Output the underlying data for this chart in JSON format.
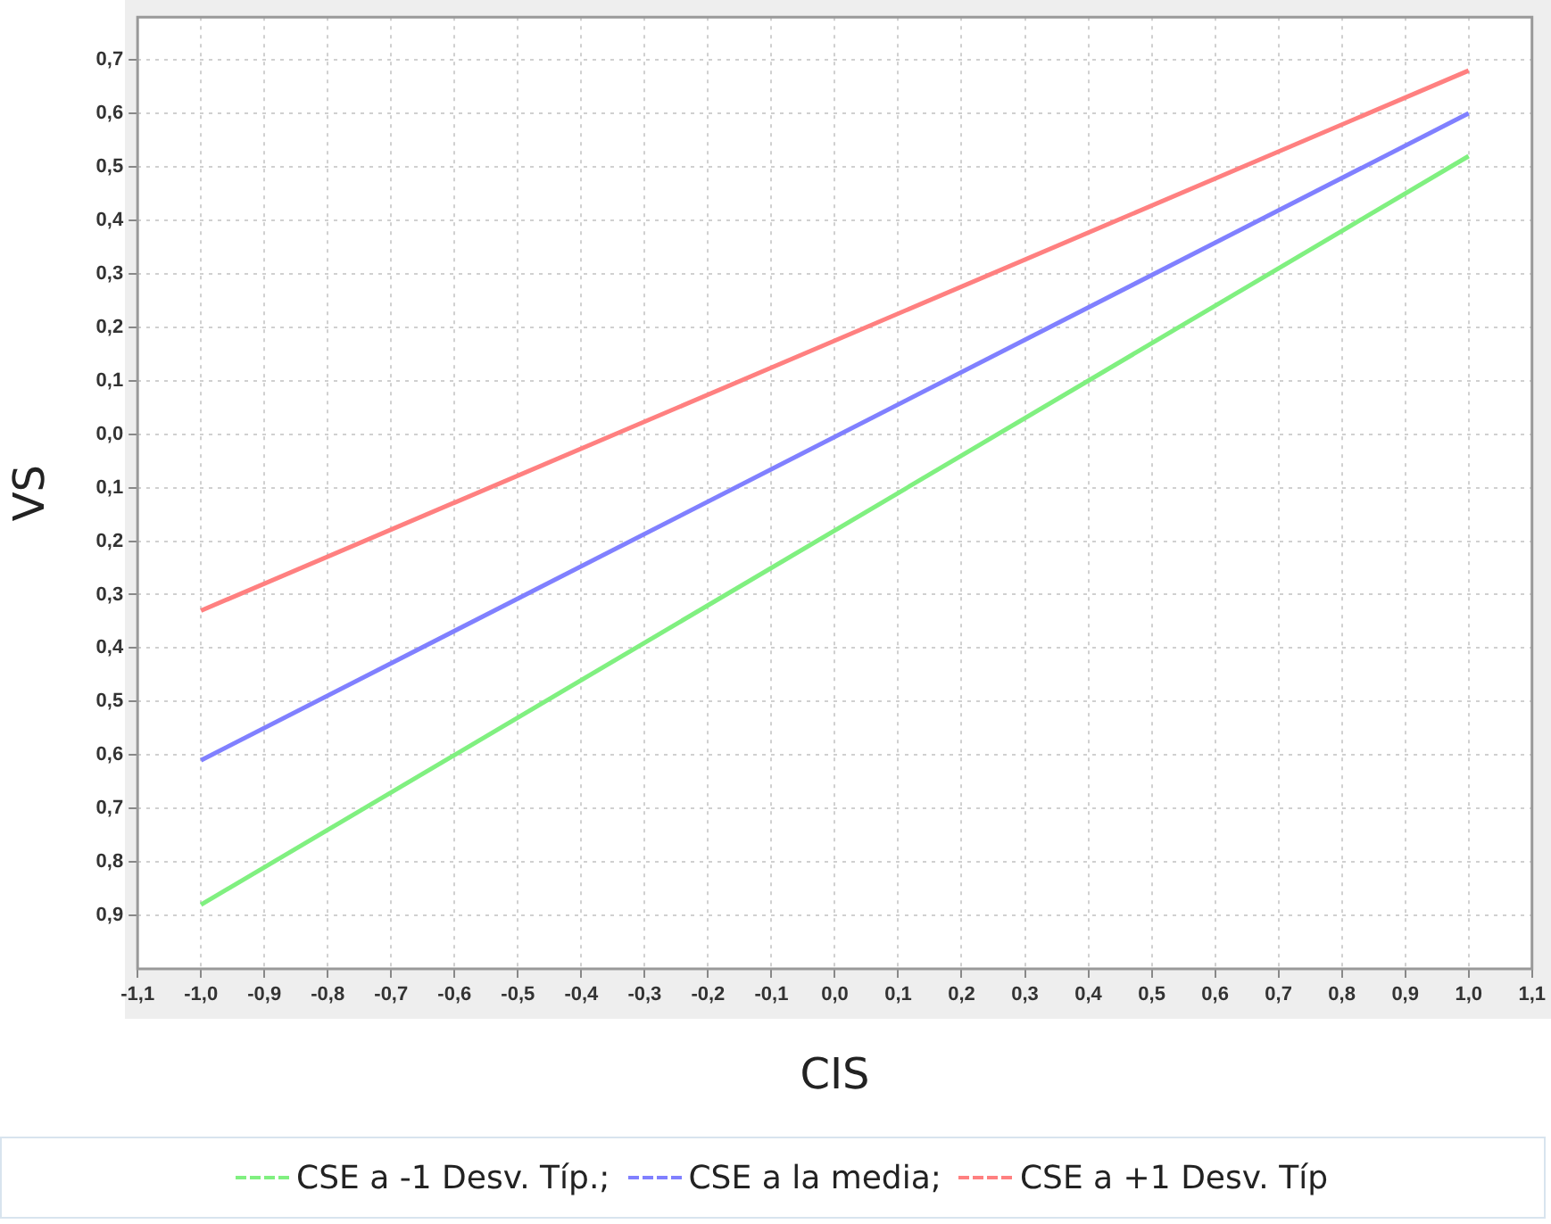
{
  "chart_data": {
    "type": "line",
    "xlabel": "CIS",
    "ylabel": "VS",
    "xlim": [
      -1.1,
      1.1
    ],
    "xticks": [
      {
        "value": -1.1,
        "label": "-1,1"
      },
      {
        "value": -1.0,
        "label": "-1,0"
      },
      {
        "value": -0.9,
        "label": "-0,9"
      },
      {
        "value": -0.8,
        "label": "-0,8"
      },
      {
        "value": -0.7,
        "label": "-0,7"
      },
      {
        "value": -0.6,
        "label": "-0,6"
      },
      {
        "value": -0.5,
        "label": "-0,5"
      },
      {
        "value": -0.4,
        "label": "-0,4"
      },
      {
        "value": -0.3,
        "label": "-0,3"
      },
      {
        "value": -0.2,
        "label": "-0,2"
      },
      {
        "value": -0.1,
        "label": "-0,1"
      },
      {
        "value": 0,
        "label": "0,0"
      },
      {
        "value": 0.1,
        "label": "0,1"
      },
      {
        "value": 0.2,
        "label": "0,2"
      },
      {
        "value": 0.3,
        "label": "0,3"
      },
      {
        "value": 0.4,
        "label": "0,4"
      },
      {
        "value": 0.5,
        "label": "0,5"
      },
      {
        "value": 0.6,
        "label": "0,6"
      },
      {
        "value": 0.7,
        "label": "0,7"
      },
      {
        "value": 0.8,
        "label": "0,8"
      },
      {
        "value": 0.9,
        "label": "0,9"
      },
      {
        "value": 1.0,
        "label": "1,0"
      },
      {
        "value": 1.1,
        "label": "1,1"
      }
    ],
    "ylim": [
      -1.0,
      0.78
    ],
    "yticks": [
      {
        "value": -0.9,
        "label": "0,9"
      },
      {
        "value": -0.8,
        "label": "0,8"
      },
      {
        "value": -0.7,
        "label": "0,7"
      },
      {
        "value": -0.6,
        "label": "0,6"
      },
      {
        "value": -0.5,
        "label": "0,5"
      },
      {
        "value": -0.4,
        "label": "0,4"
      },
      {
        "value": -0.3,
        "label": "0,3"
      },
      {
        "value": -0.2,
        "label": "0,2"
      },
      {
        "value": -0.1,
        "label": "0,1"
      },
      {
        "value": 0,
        "label": "0,0"
      },
      {
        "value": 0.1,
        "label": "0,1"
      },
      {
        "value": 0.2,
        "label": "0,2"
      },
      {
        "value": 0.3,
        "label": "0,3"
      },
      {
        "value": 0.4,
        "label": "0,4"
      },
      {
        "value": 0.5,
        "label": "0,5"
      },
      {
        "value": 0.6,
        "label": "0,6"
      },
      {
        "value": 0.7,
        "label": "0,7"
      }
    ],
    "x": [
      -1.0,
      1.0
    ],
    "grid": true,
    "legend": "bottom",
    "marker": "none",
    "line_style": "solid",
    "series": [
      {
        "name": "CSE a -1 Desv. Típ.;",
        "color": "#80f080",
        "values": [
          -0.88,
          0.52
        ]
      },
      {
        "name": "CSE a la media;",
        "color": "#8080ff",
        "values": [
          -0.61,
          0.6
        ]
      },
      {
        "name": "CSE a +1 Desv. Típ",
        "color": "#ff8080",
        "values": [
          -0.33,
          0.68
        ]
      }
    ]
  }
}
